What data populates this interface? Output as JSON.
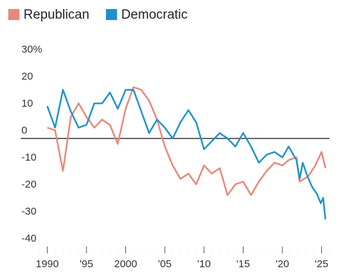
{
  "chart_data": {
    "type": "line",
    "xlim": [
      1989,
      2026
    ],
    "xticks": [
      {
        "value": 1990,
        "label": "1990"
      },
      {
        "value": 1995,
        "label": "'95"
      },
      {
        "value": 2000,
        "label": "2000"
      },
      {
        "value": 2005,
        "label": "'05"
      },
      {
        "value": 2010,
        "label": "'10"
      },
      {
        "value": 2015,
        "label": "'15"
      },
      {
        "value": 2020,
        "label": "'20"
      },
      {
        "value": 2025,
        "label": "'25"
      }
    ],
    "ylim": [
      -40,
      30
    ],
    "yticks": [
      {
        "value": 30,
        "label": "30%"
      },
      20,
      10,
      0,
      -10,
      -20,
      -30,
      -40
    ],
    "series": [
      {
        "name": "Republican",
        "color": "#e8887a",
        "x": [
          1990,
          1991,
          1992,
          1993,
          1994,
          1995,
          1996,
          1997,
          1998,
          1999,
          2000,
          2001,
          2002,
          2003,
          2004,
          2005,
          2006,
          2007,
          2008,
          2009,
          2010,
          2011,
          2012,
          2013,
          2014,
          2015,
          2016,
          2017,
          2018,
          2019,
          2020,
          2020.8,
          2021.8,
          2022.2,
          2023.3,
          2024.2,
          2025,
          2025.5
        ],
        "values": [
          4,
          3,
          -12,
          8,
          13,
          8,
          4,
          7,
          5,
          -2,
          11,
          19,
          18,
          14,
          7,
          -3,
          -10,
          -15,
          -13,
          -17,
          -10,
          -13,
          -11,
          -21,
          -17,
          -16,
          -21,
          -16,
          -12,
          -9,
          -10,
          -8,
          -7,
          -16,
          -14,
          -10,
          -5,
          -11
        ]
      },
      {
        "name": "Democratic",
        "color": "#1f93c8",
        "x": [
          1990,
          1991,
          1992,
          1993,
          1994,
          1995,
          1996,
          1997,
          1998,
          1999,
          2000,
          2001,
          2002,
          2003,
          2004,
          2005,
          2006,
          2007,
          2008,
          2009,
          2010,
          2011,
          2012,
          2013,
          2014,
          2015,
          2016,
          2017,
          2018,
          2019,
          2020,
          2020.8,
          2021.8,
          2022.2,
          2022.6,
          2023.2,
          2023.8,
          2024.4,
          2024.9,
          2025.2,
          2025.5
        ],
        "values": [
          12,
          4,
          18,
          10,
          4,
          5,
          13,
          13,
          17,
          11,
          18,
          18,
          10,
          2,
          7,
          4,
          0,
          6,
          10.5,
          6,
          -4,
          -1,
          2,
          0,
          -3,
          2,
          -3,
          -9,
          -6,
          -5,
          -7,
          -3,
          -8,
          -15,
          -9,
          -14,
          -18,
          -20.5,
          -24,
          -22,
          -30
        ]
      }
    ]
  }
}
